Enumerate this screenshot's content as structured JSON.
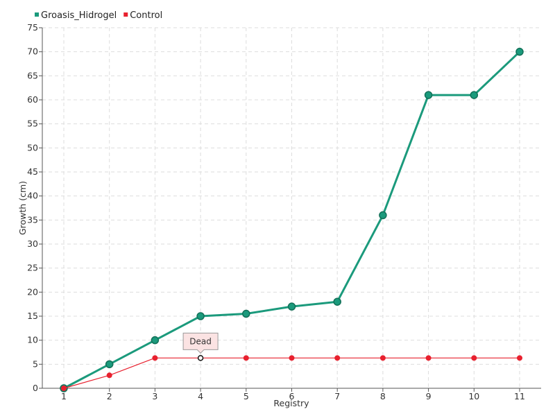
{
  "chart_data": {
    "type": "line",
    "xlabel": "Registry",
    "ylabel": "Growth (cm)",
    "categories": [
      "1",
      "2",
      "3",
      "4",
      "5",
      "6",
      "7",
      "8",
      "9",
      "10",
      "11"
    ],
    "ylim": [
      0,
      75
    ],
    "yticks": [
      0,
      5,
      10,
      15,
      20,
      25,
      30,
      35,
      40,
      45,
      50,
      55,
      60,
      65,
      70,
      75
    ],
    "grid": true,
    "legend_position": "top-left",
    "series": [
      {
        "name": "Groasis_Hidrogel",
        "color": "#1b9a7c",
        "values": [
          0,
          5,
          10,
          15,
          15.5,
          17,
          18,
          36,
          61,
          61,
          70
        ]
      },
      {
        "name": "Control",
        "color": "#e8202e",
        "values": [
          0,
          2.7,
          6.3,
          6.3,
          6.3,
          6.3,
          6.3,
          6.3,
          6.3,
          6.3,
          6.3
        ]
      }
    ],
    "annotations": [
      {
        "text": "Dead",
        "series": "Control",
        "category": "4"
      }
    ]
  }
}
